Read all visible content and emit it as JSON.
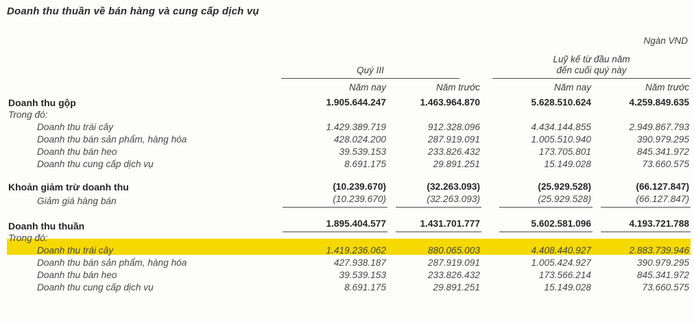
{
  "document": {
    "title": "Doanh thu thuần về bán hàng và cung cấp dịch vụ",
    "currency_note": "Ngàn VND"
  },
  "highlight_color": "#f6d900",
  "table": {
    "groups": [
      {
        "lines": [
          "Quý III"
        ]
      },
      {
        "lines": [
          "Luỹ kế từ đầu năm",
          "đến cuối quý này"
        ]
      }
    ],
    "columns": [
      "Năm nay",
      "Năm trước",
      "Năm nay",
      "Năm trước"
    ],
    "rows": [
      {
        "label": "Doanh thu gộp",
        "bold": true,
        "pad_top": true,
        "values": [
          "1.905.644.247",
          "1.463.964.870",
          "5.628.510.624",
          "4.259.849.635"
        ]
      },
      {
        "label": "Trong đó:",
        "italic": true,
        "values": [
          "",
          "",
          "",
          ""
        ]
      },
      {
        "label": "Doanh thu trái cây",
        "italic": true,
        "indent": true,
        "values": [
          "1.429.389.719",
          "912.328.096",
          "4.434.144.855",
          "2.949.867.793"
        ]
      },
      {
        "label": "Doanh thu bán sản phẩm, hàng hóa",
        "italic": true,
        "indent": true,
        "values": [
          "428.024.200",
          "287.919.091",
          "1.005.510.940",
          "390.979.295"
        ]
      },
      {
        "label": "Doanh thu bán heo",
        "italic": true,
        "indent": true,
        "values": [
          "39.539.153",
          "233.826.432",
          "173.705.801",
          "845.341.972"
        ]
      },
      {
        "label": "Doanh thu cung cấp dịch vụ",
        "italic": true,
        "indent": true,
        "values": [
          "8.691.175",
          "29.891.251",
          "15.149.028",
          "73.660.575"
        ]
      },
      {
        "label": "Khoản giảm trừ doanh thu",
        "bold": true,
        "gap_above": true,
        "values": [
          "(10.239.670)",
          "(32.263.093)",
          "(25.929.528)",
          "(66.127.847)"
        ]
      },
      {
        "label": "Giảm giá hàng bán",
        "italic": true,
        "indent": true,
        "rule_below": true,
        "values": [
          "(10.239.670)",
          "(32.263.093)",
          "(25.929.528)",
          "(66.127.847)"
        ]
      },
      {
        "label": "Doanh thu thuần",
        "bold": true,
        "gap_above": true,
        "rule_below": true,
        "values": [
          "1.895.404.577",
          "1.431.701.777",
          "5.602.581.096",
          "4.193.721.788"
        ]
      },
      {
        "label": "Trong đó:",
        "italic": true,
        "pre_highlight": true,
        "values": [
          "",
          "",
          "",
          ""
        ]
      },
      {
        "label": "Doanh thu trái cây",
        "italic": true,
        "indent": true,
        "highlight": true,
        "values": [
          "1.419.236.062",
          "880.065.003",
          "4.408.440.927",
          "2.883.739.946"
        ]
      },
      {
        "label": "Doanh thu bán sản phẩm, hàng hóa",
        "italic": true,
        "indent": true,
        "values": [
          "427.938.187",
          "287.919.091",
          "1.005.424.927",
          "390.979.295"
        ]
      },
      {
        "label": "Doanh thu bán heo",
        "italic": true,
        "indent": true,
        "values": [
          "39.539.153",
          "233.826.432",
          "173.566.214",
          "845.341.972"
        ]
      },
      {
        "label": "Doanh thu cung cấp dịch vụ",
        "italic": true,
        "indent": true,
        "values": [
          "8.691.175",
          "29.891.251",
          "15.149.028",
          "73.660.575"
        ]
      }
    ]
  }
}
